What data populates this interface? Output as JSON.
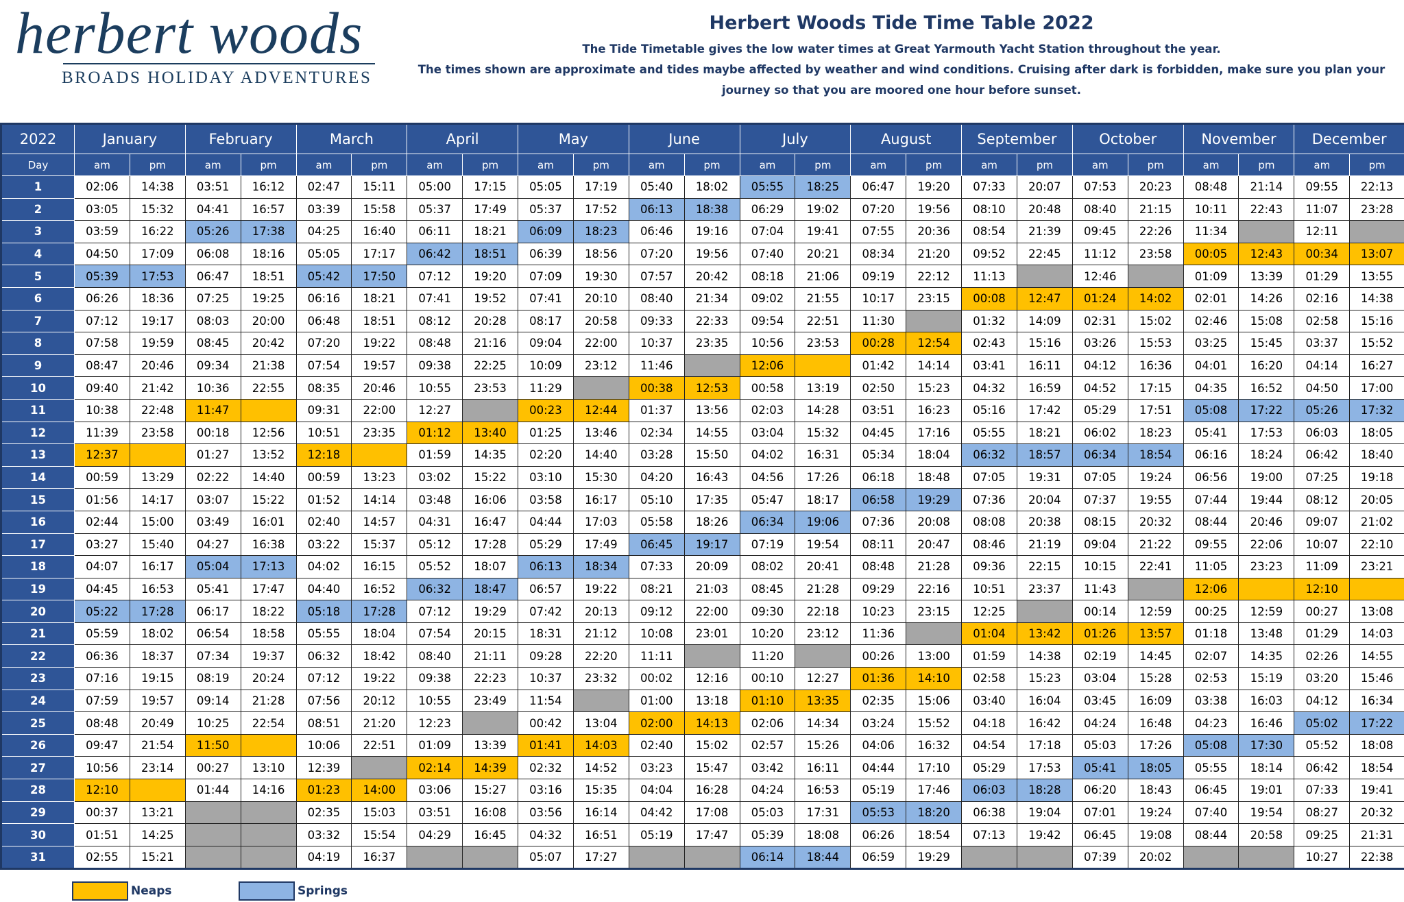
{
  "header": {
    "logo_name": "herbert woods",
    "logo_tagline": "BROADS HOLIDAY ADVENTURES",
    "title": "Herbert Woods Tide Time Table 2022",
    "subtitle": "The Tide Timetable gives the low water times at Great Yarmouth Yacht Station throughout the year.",
    "note": "The times shown are approximate and tides maybe affected by weather and wind conditions. Cruising after dark is forbidden, make sure you plan your journey so that you are moored one hour before sunset."
  },
  "table": {
    "corner": "2022",
    "day_label": "Day",
    "am_label": "am",
    "pm_label": "pm",
    "months": [
      "January",
      "February",
      "March",
      "April",
      "May",
      "June",
      "July",
      "August",
      "September",
      "October",
      "November",
      "December"
    ],
    "rows": [
      {
        "day": 1,
        "times": [
          "02:06",
          "14:38",
          "03:51",
          "16:12",
          "02:47",
          "15:11",
          "05:00",
          "17:15",
          "05:05",
          "17:19",
          "05:40",
          "18:02",
          "05:55",
          "18:25",
          "06:47",
          "19:20",
          "07:33",
          "20:07",
          "07:53",
          "20:23",
          "08:48",
          "21:14",
          "09:55",
          "22:13"
        ],
        "springs": [
          6
        ]
      },
      {
        "day": 2,
        "times": [
          "03:05",
          "15:32",
          "04:41",
          "16:57",
          "03:39",
          "15:58",
          "05:37",
          "17:49",
          "05:37",
          "17:52",
          "06:13",
          "18:38",
          "06:29",
          "19:02",
          "07:20",
          "19:56",
          "08:10",
          "20:48",
          "08:40",
          "21:15",
          "10:11",
          "22:43",
          "11:07",
          "23:28"
        ],
        "springs": [
          5
        ]
      },
      {
        "day": 3,
        "times": [
          "03:59",
          "16:22",
          "05:26",
          "17:38",
          "04:25",
          "16:40",
          "06:11",
          "18:21",
          "06:09",
          "18:23",
          "06:46",
          "19:16",
          "07:04",
          "19:41",
          "07:55",
          "20:36",
          "08:54",
          "21:39",
          "09:45",
          "22:26",
          "11:34",
          null,
          "12:11",
          null
        ],
        "springs": [
          1,
          4
        ]
      },
      {
        "day": 4,
        "times": [
          "04:50",
          "17:09",
          "06:08",
          "18:16",
          "05:05",
          "17:17",
          "06:42",
          "18:51",
          "06:39",
          "18:56",
          "07:20",
          "19:56",
          "07:40",
          "20:21",
          "08:34",
          "21:20",
          "09:52",
          "22:45",
          "11:12",
          "23:58",
          "00:05",
          "12:43",
          "00:34",
          "13:07"
        ],
        "springs": [
          3
        ],
        "neaps": [
          10,
          11
        ]
      },
      {
        "day": 5,
        "times": [
          "05:39",
          "17:53",
          "06:47",
          "18:51",
          "05:42",
          "17:50",
          "07:12",
          "19:20",
          "07:09",
          "19:30",
          "07:57",
          "20:42",
          "08:18",
          "21:06",
          "09:19",
          "22:12",
          "11:13",
          null,
          "12:46",
          null,
          "01:09",
          "13:39",
          "01:29",
          "13:55"
        ],
        "springs": [
          0,
          2
        ]
      },
      {
        "day": 6,
        "times": [
          "06:26",
          "18:36",
          "07:25",
          "19:25",
          "06:16",
          "18:21",
          "07:41",
          "19:52",
          "07:41",
          "20:10",
          "08:40",
          "21:34",
          "09:02",
          "21:55",
          "10:17",
          "23:15",
          "00:08",
          "12:47",
          "01:24",
          "14:02",
          "02:01",
          "14:26",
          "02:16",
          "14:38"
        ],
        "neaps": [
          8,
          9
        ]
      },
      {
        "day": 7,
        "times": [
          "07:12",
          "19:17",
          "08:03",
          "20:00",
          "06:48",
          "18:51",
          "08:12",
          "20:28",
          "08:17",
          "20:58",
          "09:33",
          "22:33",
          "09:54",
          "22:51",
          "11:30",
          null,
          "01:32",
          "14:09",
          "02:31",
          "15:02",
          "02:46",
          "15:08",
          "02:58",
          "15:16"
        ]
      },
      {
        "day": 8,
        "times": [
          "07:58",
          "19:59",
          "08:45",
          "20:42",
          "07:20",
          "19:22",
          "08:48",
          "21:16",
          "09:04",
          "22:00",
          "10:37",
          "23:35",
          "10:56",
          "23:53",
          "00:28",
          "12:54",
          "02:43",
          "15:16",
          "03:26",
          "15:53",
          "03:25",
          "15:45",
          "03:37",
          "15:52"
        ],
        "neaps": [
          7
        ]
      },
      {
        "day": 9,
        "times": [
          "08:47",
          "20:46",
          "09:34",
          "21:38",
          "07:54",
          "19:57",
          "09:38",
          "22:25",
          "10:09",
          "23:12",
          "11:46",
          null,
          "12:06",
          null,
          "01:42",
          "14:14",
          "03:41",
          "16:11",
          "04:12",
          "16:36",
          "04:01",
          "16:20",
          "04:14",
          "16:27"
        ],
        "neaps": [
          6
        ]
      },
      {
        "day": 10,
        "times": [
          "09:40",
          "21:42",
          "10:36",
          "22:55",
          "08:35",
          "20:46",
          "10:55",
          "23:53",
          "11:29",
          null,
          "00:38",
          "12:53",
          "00:58",
          "13:19",
          "02:50",
          "15:23",
          "04:32",
          "16:59",
          "04:52",
          "17:15",
          "04:35",
          "16:52",
          "04:50",
          "17:00"
        ],
        "neaps": [
          5
        ]
      },
      {
        "day": 11,
        "times": [
          "10:38",
          "22:48",
          "11:47",
          null,
          "09:31",
          "22:00",
          "12:27",
          null,
          "00:23",
          "12:44",
          "01:37",
          "13:56",
          "02:03",
          "14:28",
          "03:51",
          "16:23",
          "05:16",
          "17:42",
          "05:29",
          "17:51",
          "05:08",
          "17:22",
          "05:26",
          "17:32"
        ],
        "neaps": [
          1,
          4
        ],
        "springs": [
          10,
          11
        ]
      },
      {
        "day": 12,
        "times": [
          "11:39",
          "23:58",
          "00:18",
          "12:56",
          "10:51",
          "23:35",
          "01:12",
          "13:40",
          "01:25",
          "13:46",
          "02:34",
          "14:55",
          "03:04",
          "15:32",
          "04:45",
          "17:16",
          "05:55",
          "18:21",
          "06:02",
          "18:23",
          "05:41",
          "17:53",
          "06:03",
          "18:05"
        ],
        "neaps": [
          3
        ]
      },
      {
        "day": 13,
        "times": [
          "12:37",
          null,
          "01:27",
          "13:52",
          "12:18",
          null,
          "01:59",
          "14:35",
          "02:20",
          "14:40",
          "03:28",
          "15:50",
          "04:02",
          "16:31",
          "05:34",
          "18:04",
          "06:32",
          "18:57",
          "06:34",
          "18:54",
          "06:16",
          "18:24",
          "06:42",
          "18:40"
        ],
        "neaps": [
          0,
          2
        ],
        "springs": [
          8,
          9
        ]
      },
      {
        "day": 14,
        "times": [
          "00:59",
          "13:29",
          "02:22",
          "14:40",
          "00:59",
          "13:23",
          "03:02",
          "15:22",
          "03:10",
          "15:30",
          "04:20",
          "16:43",
          "04:56",
          "17:26",
          "06:18",
          "18:48",
          "07:05",
          "19:31",
          "07:05",
          "19:24",
          "06:56",
          "19:00",
          "07:25",
          "19:18"
        ]
      },
      {
        "day": 15,
        "times": [
          "01:56",
          "14:17",
          "03:07",
          "15:22",
          "01:52",
          "14:14",
          "03:48",
          "16:06",
          "03:58",
          "16:17",
          "05:10",
          "17:35",
          "05:47",
          "18:17",
          "06:58",
          "19:29",
          "07:36",
          "20:04",
          "07:37",
          "19:55",
          "07:44",
          "19:44",
          "08:12",
          "20:05"
        ],
        "springs": [
          7
        ]
      },
      {
        "day": 16,
        "times": [
          "02:44",
          "15:00",
          "03:49",
          "16:01",
          "02:40",
          "14:57",
          "04:31",
          "16:47",
          "04:44",
          "17:03",
          "05:58",
          "18:26",
          "06:34",
          "19:06",
          "07:36",
          "20:08",
          "08:08",
          "20:38",
          "08:15",
          "20:32",
          "08:44",
          "20:46",
          "09:07",
          "21:02"
        ],
        "springs": [
          6
        ]
      },
      {
        "day": 17,
        "times": [
          "03:27",
          "15:40",
          "04:27",
          "16:38",
          "03:22",
          "15:37",
          "05:12",
          "17:28",
          "05:29",
          "17:49",
          "06:45",
          "19:17",
          "07:19",
          "19:54",
          "08:11",
          "20:47",
          "08:46",
          "21:19",
          "09:04",
          "21:22",
          "09:55",
          "22:06",
          "10:07",
          "22:10"
        ],
        "springs": [
          5
        ]
      },
      {
        "day": 18,
        "times": [
          "04:07",
          "16:17",
          "05:04",
          "17:13",
          "04:02",
          "16:15",
          "05:52",
          "18:07",
          "06:13",
          "18:34",
          "07:33",
          "20:09",
          "08:02",
          "20:41",
          "08:48",
          "21:28",
          "09:36",
          "22:15",
          "10:15",
          "22:41",
          "11:05",
          "23:23",
          "11:09",
          "23:21"
        ],
        "springs": [
          1,
          4
        ]
      },
      {
        "day": 19,
        "times": [
          "04:45",
          "16:53",
          "05:41",
          "17:47",
          "04:40",
          "16:52",
          "06:32",
          "18:47",
          "06:57",
          "19:22",
          "08:21",
          "21:03",
          "08:45",
          "21:28",
          "09:29",
          "22:16",
          "10:51",
          "23:37",
          "11:43",
          null,
          "12:06",
          null,
          "12:10",
          null
        ],
        "springs": [
          3
        ],
        "neaps": [
          10,
          11
        ]
      },
      {
        "day": 20,
        "times": [
          "05:22",
          "17:28",
          "06:17",
          "18:22",
          "05:18",
          "17:28",
          "07:12",
          "19:29",
          "07:42",
          "20:13",
          "09:12",
          "22:00",
          "09:30",
          "22:18",
          "10:23",
          "23:15",
          "12:25",
          null,
          "00:14",
          "12:59",
          "00:25",
          "12:59",
          "00:27",
          "13:08"
        ],
        "springs": [
          0,
          2
        ]
      },
      {
        "day": 21,
        "times": [
          "05:59",
          "18:02",
          "06:54",
          "18:58",
          "05:55",
          "18:04",
          "07:54",
          "20:15",
          "18:31",
          "21:12",
          "10:08",
          "23:01",
          "10:20",
          "23:12",
          "11:36",
          null,
          "01:04",
          "13:42",
          "01:26",
          "13:57",
          "01:18",
          "13:48",
          "01:29",
          "14:03"
        ],
        "neaps": [
          8,
          9
        ]
      },
      {
        "day": 22,
        "times": [
          "06:36",
          "18:37",
          "07:34",
          "19:37",
          "06:32",
          "18:42",
          "08:40",
          "21:11",
          "09:28",
          "22:20",
          "11:11",
          null,
          "11:20",
          null,
          "00:26",
          "13:00",
          "01:59",
          "14:38",
          "02:19",
          "14:45",
          "02:07",
          "14:35",
          "02:26",
          "14:55"
        ]
      },
      {
        "day": 23,
        "times": [
          "07:16",
          "19:15",
          "08:19",
          "20:24",
          "07:12",
          "19:22",
          "09:38",
          "22:23",
          "10:37",
          "23:32",
          "00:02",
          "12:16",
          "00:10",
          "12:27",
          "01:36",
          "14:10",
          "02:58",
          "15:23",
          "03:04",
          "15:28",
          "02:53",
          "15:19",
          "03:20",
          "15:46"
        ],
        "neaps": [
          7
        ]
      },
      {
        "day": 24,
        "times": [
          "07:59",
          "19:57",
          "09:14",
          "21:28",
          "07:56",
          "20:12",
          "10:55",
          "23:49",
          "11:54",
          null,
          "01:00",
          "13:18",
          "01:10",
          "13:35",
          "02:35",
          "15:06",
          "03:40",
          "16:04",
          "03:45",
          "16:09",
          "03:38",
          "16:03",
          "04:12",
          "16:34"
        ],
        "neaps": [
          6
        ]
      },
      {
        "day": 25,
        "times": [
          "08:48",
          "20:49",
          "10:25",
          "22:54",
          "08:51",
          "21:20",
          "12:23",
          null,
          "00:42",
          "13:04",
          "02:00",
          "14:13",
          "02:06",
          "14:34",
          "03:24",
          "15:52",
          "04:18",
          "16:42",
          "04:24",
          "16:48",
          "04:23",
          "16:46",
          "05:02",
          "17:22"
        ],
        "neaps": [
          5
        ],
        "springs": [
          11
        ]
      },
      {
        "day": 26,
        "times": [
          "09:47",
          "21:54",
          "11:50",
          null,
          "10:06",
          "22:51",
          "01:09",
          "13:39",
          "01:41",
          "14:03",
          "02:40",
          "15:02",
          "02:57",
          "15:26",
          "04:06",
          "16:32",
          "04:54",
          "17:18",
          "05:03",
          "17:26",
          "05:08",
          "17:30",
          "05:52",
          "18:08"
        ],
        "neaps": [
          1,
          4
        ],
        "springs": [
          10
        ]
      },
      {
        "day": 27,
        "times": [
          "10:56",
          "23:14",
          "00:27",
          "13:10",
          "12:39",
          null,
          "02:14",
          "14:39",
          "02:32",
          "14:52",
          "03:23",
          "15:47",
          "03:42",
          "16:11",
          "04:44",
          "17:10",
          "05:29",
          "17:53",
          "05:41",
          "18:05",
          "05:55",
          "18:14",
          "06:42",
          "18:54"
        ],
        "neaps": [
          3
        ],
        "springs": [
          9
        ]
      },
      {
        "day": 28,
        "times": [
          "12:10",
          null,
          "01:44",
          "14:16",
          "01:23",
          "14:00",
          "03:06",
          "15:27",
          "03:16",
          "15:35",
          "04:04",
          "16:28",
          "04:24",
          "16:53",
          "05:19",
          "17:46",
          "06:03",
          "18:28",
          "06:20",
          "18:43",
          "06:45",
          "19:01",
          "07:33",
          "19:41"
        ],
        "neaps": [
          0,
          2
        ],
        "springs": [
          8
        ]
      },
      {
        "day": 29,
        "times": [
          "00:37",
          "13:21",
          null,
          null,
          "02:35",
          "15:03",
          "03:51",
          "16:08",
          "03:56",
          "16:14",
          "04:42",
          "17:08",
          "05:03",
          "17:31",
          "05:53",
          "18:20",
          "06:38",
          "19:04",
          "07:01",
          "19:24",
          "07:40",
          "19:54",
          "08:27",
          "20:32"
        ],
        "springs": [
          7
        ]
      },
      {
        "day": 30,
        "times": [
          "01:51",
          "14:25",
          null,
          null,
          "03:32",
          "15:54",
          "04:29",
          "16:45",
          "04:32",
          "16:51",
          "05:19",
          "17:47",
          "05:39",
          "18:08",
          "06:26",
          "18:54",
          "07:13",
          "19:42",
          "06:45",
          "19:08",
          "08:44",
          "20:58",
          "09:25",
          "21:31"
        ]
      },
      {
        "day": 31,
        "times": [
          "02:55",
          "15:21",
          null,
          null,
          "04:19",
          "16:37",
          null,
          null,
          "05:07",
          "17:27",
          null,
          null,
          "06:14",
          "18:44",
          "06:59",
          "19:29",
          null,
          null,
          "07:39",
          "20:02",
          null,
          null,
          "10:27",
          "22:38"
        ],
        "springs": [
          6
        ]
      }
    ]
  },
  "legend": [
    {
      "label": "Neaps",
      "color": "#ffc000"
    },
    {
      "label": "Springs",
      "color": "#8eb4e3"
    }
  ]
}
